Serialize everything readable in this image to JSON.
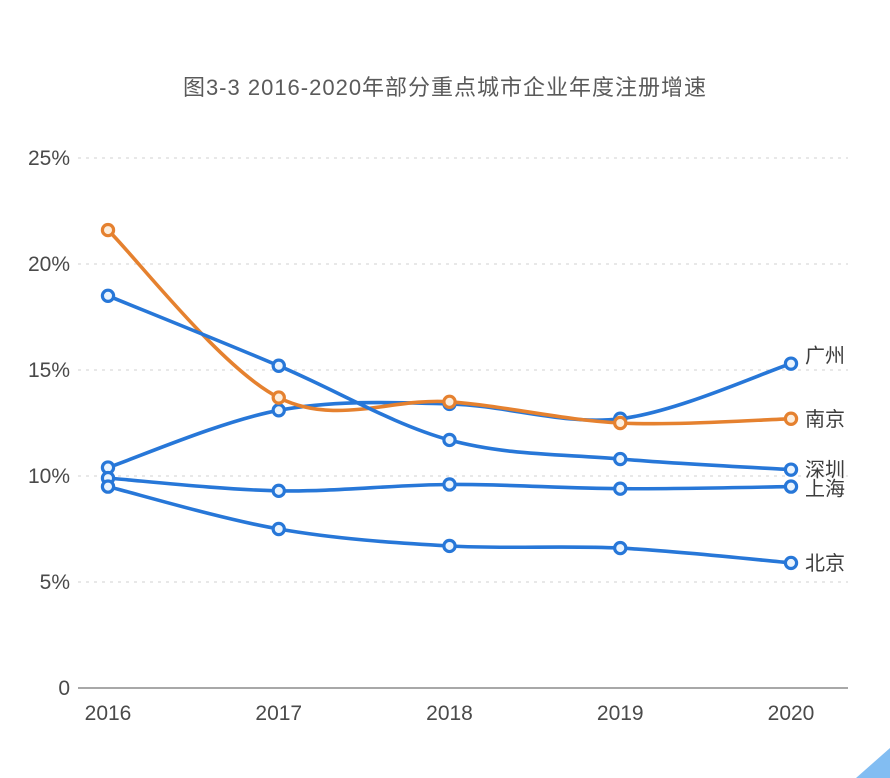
{
  "title": {
    "text": "图3-3 2016-2020年部分重点城市企业年度注册增速"
  },
  "chart_data": {
    "type": "line",
    "x": [
      "2016",
      "2017",
      "2018",
      "2019",
      "2020"
    ],
    "series": [
      {
        "id": "guangzhou",
        "name": "广州",
        "values": [
          10.4,
          13.1,
          13.4,
          12.7,
          15.3
        ],
        "color": "#2777d8",
        "marker_fill": "#eaf4fe",
        "label_dy": -8
      },
      {
        "id": "nanjing",
        "name": "南京",
        "values": [
          21.6,
          13.7,
          13.5,
          12.5,
          12.7
        ],
        "color": "#e5812f",
        "marker_fill": "#fdeedd",
        "label_dy": 0
      },
      {
        "id": "shenzhen",
        "name": "深圳",
        "values": [
          18.5,
          15.2,
          11.7,
          10.8,
          10.3
        ],
        "color": "#2777d8",
        "marker_fill": "#eaf4fe",
        "label_dy": 0
      },
      {
        "id": "shanghai",
        "name": "上海",
        "values": [
          9.9,
          9.3,
          9.6,
          9.4,
          9.5
        ],
        "color": "#2777d8",
        "marker_fill": "#eaf4fe",
        "label_dy": 2
      },
      {
        "id": "beijing",
        "name": "北京",
        "values": [
          9.5,
          7.5,
          6.7,
          6.6,
          5.9
        ],
        "color": "#2777d8",
        "marker_fill": "#eaf4fe",
        "label_dy": 0
      }
    ],
    "yticks": [
      0,
      5,
      10,
      15,
      20,
      25
    ],
    "ytick_labels": [
      "0",
      "5%",
      "10%",
      "15%",
      "20%",
      "25%"
    ],
    "ylim": [
      0,
      25
    ],
    "xlabel": "",
    "ylabel": "",
    "grid": "horizontal-dashed",
    "legend_position": "right-of-last-point",
    "marker": "open-circle",
    "smooth": true
  },
  "colors": {
    "axis_line": "#a8a8a8",
    "gridline": "#d9d9d9",
    "tick_label": "#4a4a4a",
    "series_label": "#3d3d3d",
    "title": "#5a5a5a",
    "corner_triangle": "#82bdf2"
  }
}
